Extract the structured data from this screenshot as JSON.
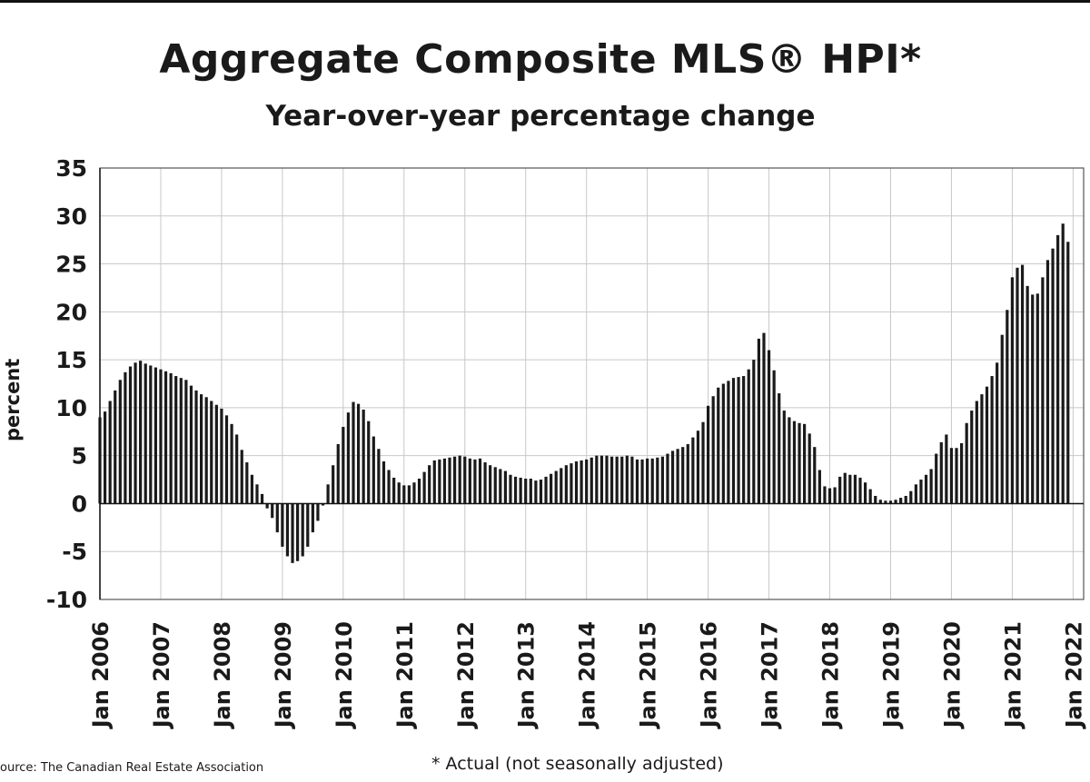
{
  "chart_data": {
    "type": "bar",
    "title": "Aggregate Composite MLS® HPI*",
    "subtitle": "Year-over-year percentage change",
    "ylabel": "percent",
    "xlabel": "",
    "ylim": [
      -10,
      35
    ],
    "yticks": [
      "35",
      "30",
      "25",
      "20",
      "15",
      "10",
      "5",
      "0",
      "-5",
      "-10"
    ],
    "xtick_labels": [
      "Jan 2006",
      "Jan 2007",
      "Jan 2008",
      "Jan 2009",
      "Jan 2010",
      "Jan 2011",
      "Jan 2012",
      "Jan 2013",
      "Jan 2014",
      "Jan 2015",
      "Jan 2016",
      "Jan 2017",
      "Jan 2018",
      "Jan 2019",
      "Jan 2020",
      "Jan 2021",
      "Jan 2022"
    ],
    "grid": true,
    "frequency": "monthly",
    "series": [
      {
        "values": [
          9.0,
          9.6,
          10.7,
          11.8,
          12.9,
          13.7,
          14.3,
          14.7,
          14.9,
          14.6,
          14.4,
          14.2,
          14.0,
          13.8,
          13.6,
          13.3,
          13.1,
          12.9,
          12.3,
          11.8,
          11.4,
          11.1,
          10.7,
          10.3,
          9.9,
          9.2,
          8.3,
          7.2,
          5.6,
          4.3,
          3.0,
          2.0,
          1.0,
          -0.5,
          -1.5,
          -3.0,
          -4.5,
          -5.5,
          -6.2,
          -6.0,
          -5.5,
          -4.5,
          -3.0,
          -1.8,
          -0.2,
          2.0,
          4.0,
          6.2,
          8.0,
          9.5,
          10.6,
          10.4,
          9.8,
          8.6,
          7.0,
          5.7,
          4.4,
          3.5,
          2.7,
          2.2,
          1.9,
          1.9,
          2.2,
          2.6,
          3.3,
          4.0,
          4.5,
          4.6,
          4.7,
          4.8,
          4.9,
          5.0,
          4.9,
          4.7,
          4.6,
          4.7,
          4.3,
          4.0,
          3.8,
          3.6,
          3.4,
          3.0,
          2.8,
          2.7,
          2.6,
          2.6,
          2.4,
          2.5,
          2.8,
          3.1,
          3.4,
          3.7,
          4.0,
          4.2,
          4.4,
          4.5,
          4.6,
          4.8,
          5.0,
          5.0,
          5.0,
          4.9,
          4.9,
          4.9,
          5.0,
          4.9,
          4.6,
          4.6,
          4.7,
          4.7,
          4.8,
          4.9,
          5.2,
          5.5,
          5.7,
          5.9,
          6.2,
          6.9,
          7.6,
          8.5,
          10.2,
          11.2,
          12.1,
          12.5,
          12.8,
          13.1,
          13.2,
          13.3,
          14.0,
          15.0,
          17.2,
          17.8,
          16.0,
          13.9,
          11.5,
          9.7,
          9.0,
          8.6,
          8.4,
          8.3,
          7.3,
          5.9,
          3.5,
          1.8,
          1.6,
          1.7,
          2.8,
          3.2,
          3.0,
          3.0,
          2.7,
          2.2,
          1.5,
          0.8,
          0.4,
          0.3,
          0.3,
          0.4,
          0.6,
          0.8,
          1.3,
          2.0,
          2.5,
          3.0,
          3.6,
          5.2,
          6.4,
          7.2,
          5.8,
          5.8,
          6.3,
          8.4,
          9.7,
          10.7,
          11.4,
          12.2,
          13.3,
          14.7,
          17.6,
          20.2,
          23.6,
          24.6,
          24.9,
          22.7,
          21.8,
          21.9,
          23.6,
          25.4,
          26.6,
          28.0,
          29.2,
          27.3
        ]
      }
    ]
  },
  "footer": {
    "source": "ource: The Canadian Real Estate Association",
    "note": "* Actual (not seasonally adjusted)"
  },
  "colors": {
    "bar": "#1a1a1a",
    "grid": "#c8c8c8",
    "axis": "#555555"
  }
}
